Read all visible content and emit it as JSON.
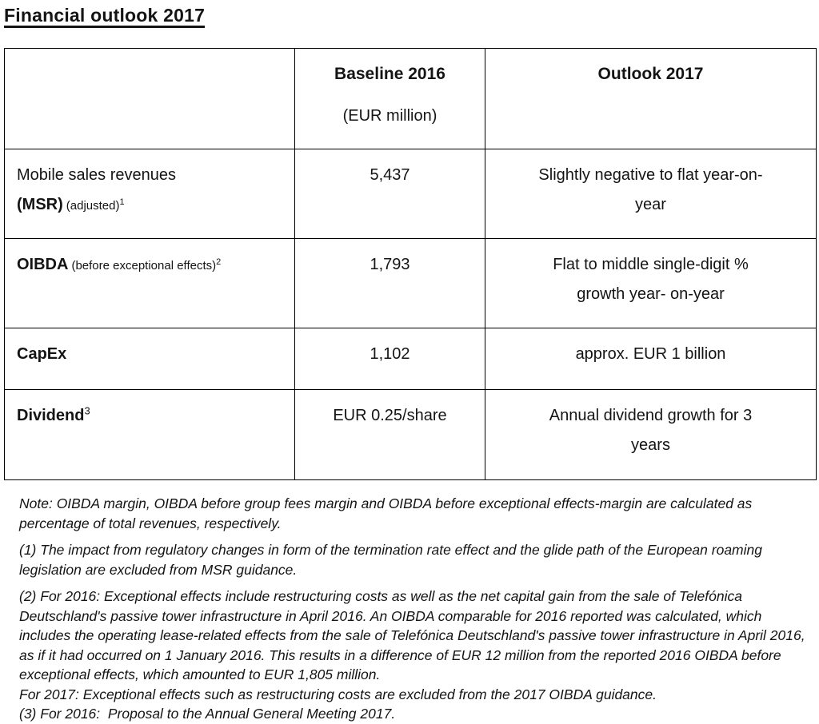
{
  "title": "Financial outlook 2017",
  "table": {
    "header": {
      "baseline_title": "Baseline 2016",
      "baseline_unit": "(EUR million)",
      "outlook_title": "Outlook 2017"
    },
    "rows": [
      {
        "label": "Mobile sales revenues",
        "label_bold": "(MSR)",
        "label_note": "(adjusted)",
        "footnote_ref": "1",
        "baseline": "5,437",
        "outlook": "Slightly negative to flat year-on-\nyear"
      },
      {
        "label_bold": "OIBDA",
        "label_note": "(before exceptional effects)",
        "footnote_ref": "2",
        "baseline": "1,793",
        "outlook": "Flat to middle single-digit %\ngrowth year- on-year"
      },
      {
        "label_bold": "CapEx",
        "baseline": "1,102",
        "outlook": "approx. EUR 1 billion"
      },
      {
        "label_bold": "Dividend",
        "footnote_ref": "3",
        "baseline": "EUR 0.25/share",
        "outlook": "Annual dividend growth for 3\nyears"
      }
    ]
  },
  "footnotes": {
    "note": "Note: OIBDA margin, OIBDA before group fees margin and OIBDA before exceptional effects-margin are calculated as percentage of total revenues, respectively.",
    "fn1": "(1) The impact from regulatory changes in form of the termination rate effect and the glide path of the European roaming legislation are excluded from MSR guidance.",
    "fn2": "(2) For 2016: Exceptional effects include restructuring costs as well as the net capital gain from the sale of Telefónica Deutschland's passive tower infrastructure in April 2016. An OIBDA comparable for 2016 reported was calculated, which includes the operating lease-related effects from the sale of Telefónica Deutschland's passive tower infrastructure in April 2016, as if it had occurred on 1 January 2016. This results in a difference of EUR 12 million from the reported 2016 OIBDA before exceptional effects, which amounted to EUR 1,805 million.",
    "fn2b": "For 2017: Exceptional effects such as restructuring costs are excluded from the 2017 OIBDA guidance.",
    "fn3": "(3) For 2016:  Proposal to the Annual General Meeting 2017."
  }
}
